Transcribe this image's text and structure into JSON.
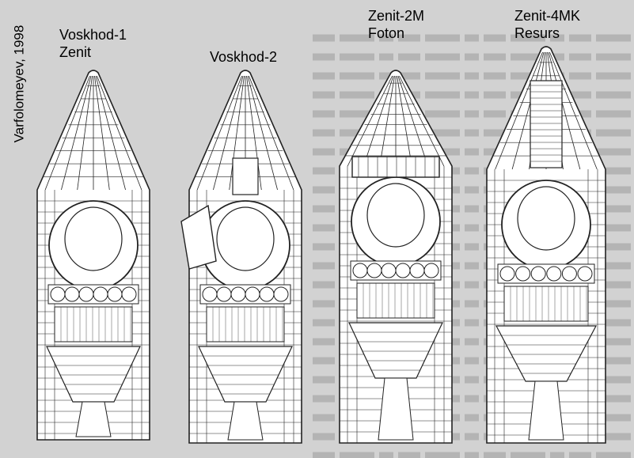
{
  "credit": "Varfolomeyev, 1998",
  "vehicles": [
    {
      "line1": "Voskhod-1",
      "line2": "Zenit"
    },
    {
      "line1": "Voskhod-2",
      "line2": ""
    },
    {
      "line1": "Zenit-2M",
      "line2": "Foton"
    },
    {
      "line1": "Zenit-4MK",
      "line2": "Resurs"
    }
  ],
  "colors": {
    "background": "#d2d2d2",
    "drawing": "#ffffff",
    "line": "#222222"
  }
}
